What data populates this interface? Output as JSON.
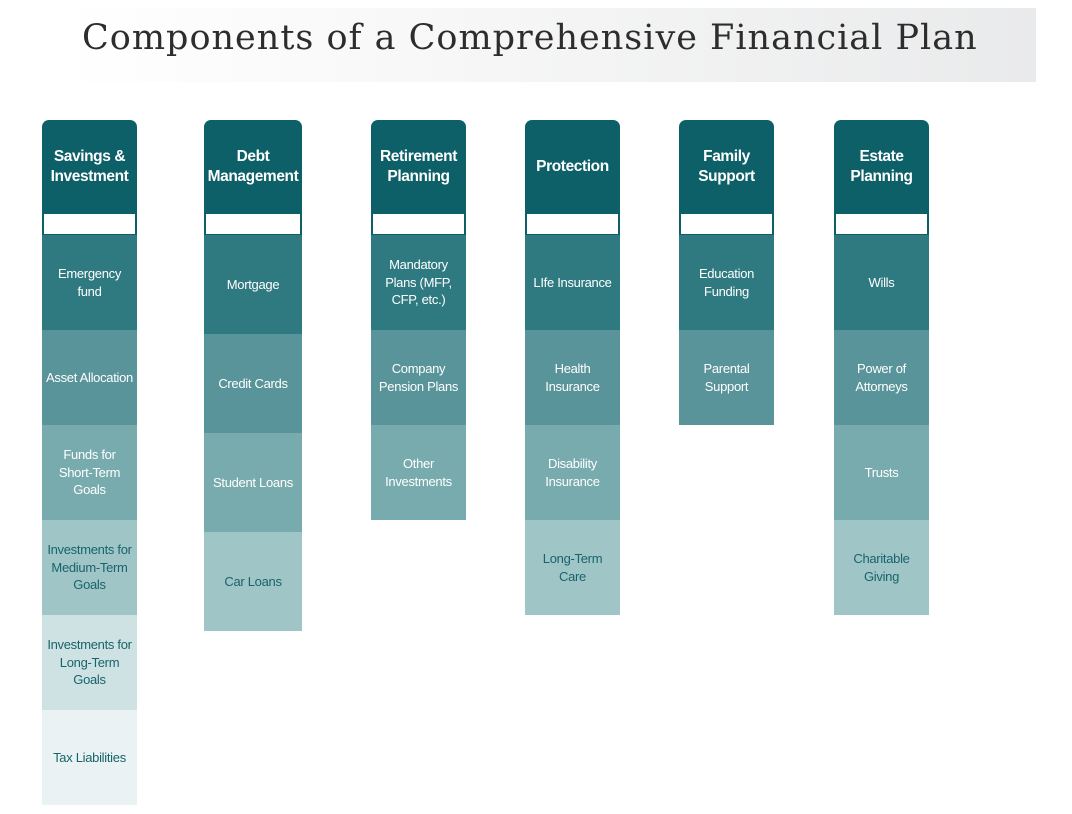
{
  "title": "Components of a Comprehensive Financial Plan",
  "colors": {
    "header": "#0d5f68",
    "level_1": "#2e7a80",
    "level_2": "#589499",
    "level_3": "#78abae",
    "level_4": "#a0c5c7",
    "level_5": "#cfe2e3",
    "level_6": "#eaf2f3"
  },
  "columns": [
    {
      "header": "Savings & Investment",
      "items": [
        "Emergency fund",
        "Asset Allocation",
        "Funds for Short-Term Goals",
        "Investments for Medium-Term Goals",
        "Investments for Long-Term Goals",
        "Tax Liabilities"
      ]
    },
    {
      "header": "Debt Management",
      "items": [
        "Mortgage",
        "Credit Cards",
        "Student Loans",
        "Car Loans"
      ]
    },
    {
      "header": "Retirement Planning",
      "items": [
        "Mandatory Plans (MFP, CFP, etc.)",
        "Company Pension Plans",
        "Other Investments"
      ]
    },
    {
      "header": "Protection",
      "items": [
        "LIfe Insurance",
        "Health Insurance",
        "Disability Insurance",
        "Long-Term Care"
      ]
    },
    {
      "header": "Family Support",
      "items": [
        "Education Funding",
        "Parental Support"
      ]
    },
    {
      "header": "Estate Planning",
      "items": [
        "Wills",
        "Power of Attorneys",
        "Trusts",
        "Charitable Giving"
      ]
    }
  ]
}
